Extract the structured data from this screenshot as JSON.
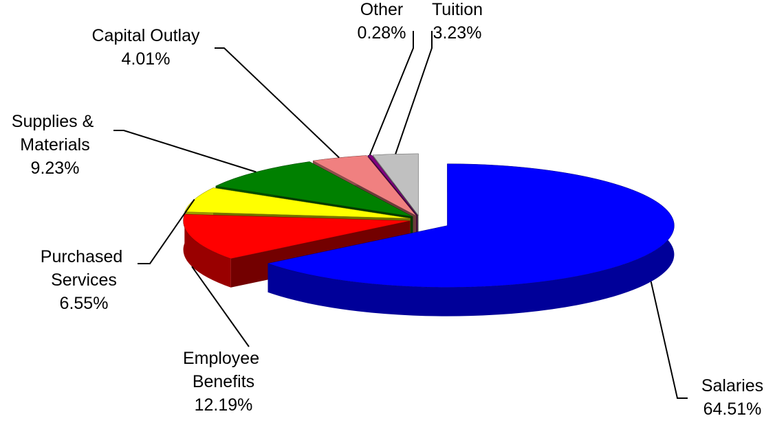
{
  "chart_data": {
    "type": "pie3d",
    "categories": [
      "Salaries",
      "Employee Benefits",
      "Purchased Services",
      "Supplies & Materials",
      "Capital Outlay",
      "Other",
      "Tuition"
    ],
    "values": [
      64.51,
      12.19,
      6.55,
      9.23,
      4.01,
      0.28,
      3.23
    ],
    "value_labels": [
      "64.51%",
      "12.19%",
      "6.55%",
      "9.23%",
      "4.01%",
      "0.28%",
      "3.23%"
    ],
    "colors": [
      "#0000ff",
      "#ff0000",
      "#ffff00",
      "#008000",
      "#f08080",
      "#800080",
      "#c0c0c0"
    ]
  }
}
